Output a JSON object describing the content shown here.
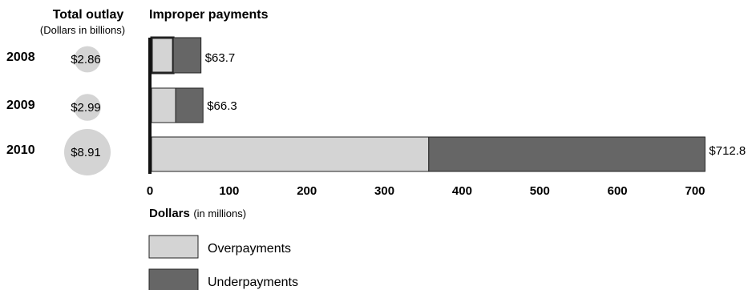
{
  "chart_data": {
    "type": "bar",
    "stacked": true,
    "orientation": "horizontal",
    "title": "Improper payments",
    "outlay_header": "Total outlay",
    "outlay_subheader": "(Dollars in billions)",
    "categories": [
      "2008",
      "2009",
      "2010"
    ],
    "outlay_values": [
      2.86,
      2.99,
      8.91
    ],
    "outlay_labels": [
      "$2.86",
      "$2.99",
      "$8.91"
    ],
    "series": [
      {
        "name": "Overpayments",
        "values": [
          28,
          31,
          357
        ],
        "color": "#d4d4d4"
      },
      {
        "name": "Underpayments",
        "values": [
          35.7,
          35.3,
          355.8
        ],
        "color": "#666666"
      }
    ],
    "totals": [
      63.7,
      66.3,
      712.8
    ],
    "total_labels": [
      "$63.7",
      "$66.3",
      "$712.8"
    ],
    "xlim": [
      0,
      700
    ],
    "xticks": [
      0,
      100,
      200,
      300,
      400,
      500,
      600,
      700
    ],
    "xlabel": "Dollars",
    "xlabel_unit": "(in millions)",
    "outlay_bubble_color": "#d4d4d4",
    "grid": false,
    "legend_position": "bottom-left"
  }
}
